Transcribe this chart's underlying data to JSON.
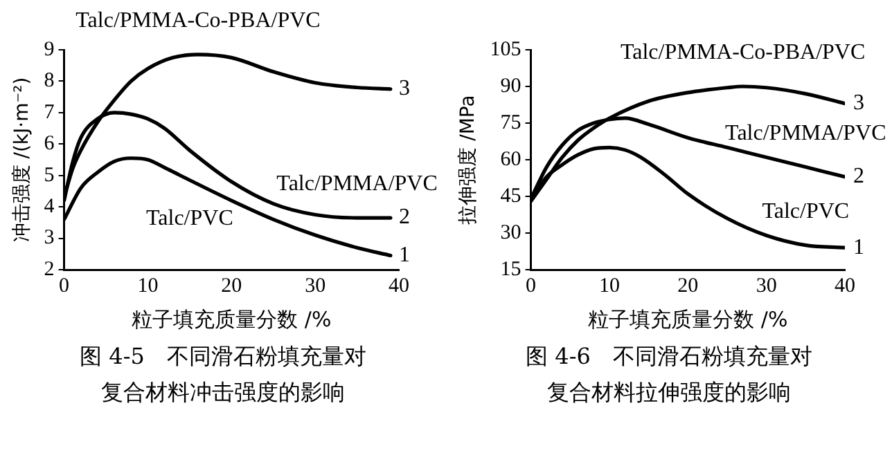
{
  "chart_data": [
    {
      "type": "line",
      "title": "图 4-5　不同滑石粉填充量对",
      "subtitle": "复合材料冲击强度的影响",
      "xlabel": "粒子填充质量分数 /%",
      "ylabel": "冲击强度 /(kJ·m⁻²)",
      "xlim": [
        0,
        40
      ],
      "ylim": [
        2,
        9
      ],
      "xticks": [
        0,
        10,
        20,
        30,
        40
      ],
      "yticks": [
        2,
        3,
        4,
        5,
        6,
        7,
        8,
        9
      ],
      "grid": false,
      "legend": false,
      "marker": "none",
      "line_style": "solid",
      "series": [
        {
          "color": "#000000",
          "x": [
            0,
            2,
            4,
            6,
            8,
            10,
            12,
            15,
            20,
            25,
            30,
            35,
            39
          ],
          "values": [
            3.6,
            4.6,
            5.1,
            5.45,
            5.55,
            5.5,
            5.25,
            4.85,
            4.2,
            3.6,
            3.1,
            2.7,
            2.45
          ]
        },
        {
          "color": "#000000",
          "x": [
            0,
            1,
            2,
            4,
            6,
            8,
            10,
            12,
            15,
            20,
            25,
            30,
            35,
            39
          ],
          "values": [
            4.2,
            5.4,
            6.2,
            6.8,
            7.0,
            6.95,
            6.8,
            6.5,
            5.8,
            4.8,
            4.1,
            3.75,
            3.65,
            3.65
          ]
        },
        {
          "color": "#000000",
          "x": [
            0,
            1,
            2,
            4,
            6,
            8,
            10,
            13,
            16,
            20,
            25,
            30,
            35,
            39
          ],
          "values": [
            4.3,
            5.2,
            5.8,
            6.7,
            7.4,
            8.0,
            8.4,
            8.75,
            8.85,
            8.75,
            8.3,
            7.95,
            7.8,
            7.75
          ]
        }
      ],
      "annotations": [
        {
          "text": "Talc/PMMA-Co-PBA/PVC",
          "x": 16,
          "y": 8.85
        },
        {
          "text": "Talc/PMMA/PVC",
          "x": 35,
          "y": 3.65
        },
        {
          "text": "Talc/PVC",
          "x": 15,
          "y": 4.85
        },
        {
          "text": "3",
          "x": 39,
          "y": 7.75
        },
        {
          "text": "2",
          "x": 39,
          "y": 3.65
        },
        {
          "text": "1",
          "x": 39,
          "y": 2.45
        }
      ]
    },
    {
      "type": "line",
      "title": "图 4-6　不同滑石粉填充量对",
      "subtitle": "复合材料拉伸强度的影响",
      "xlabel": "粒子填充质量分数 /%",
      "ylabel": "拉伸强度 /MPa",
      "xlim": [
        0,
        40
      ],
      "ylim": [
        15,
        105
      ],
      "xticks": [
        0,
        10,
        20,
        30,
        40
      ],
      "yticks": [
        15,
        30,
        45,
        60,
        75,
        90,
        105
      ],
      "grid": false,
      "legend": false,
      "marker": "none",
      "line_style": "solid",
      "series": [
        {
          "color": "#000000",
          "x": [
            0,
            2,
            4,
            6,
            8,
            10,
            12,
            14,
            17,
            20,
            25,
            30,
            35,
            40
          ],
          "values": [
            44,
            53,
            58,
            62,
            64.5,
            65,
            64,
            61,
            54,
            46,
            36,
            29,
            25,
            24
          ]
        },
        {
          "color": "#000000",
          "x": [
            0,
            2,
            4,
            6,
            8,
            10,
            12,
            15,
            20,
            25,
            30,
            35,
            40
          ],
          "values": [
            44,
            57,
            66,
            72,
            75,
            76.5,
            77,
            74.5,
            69,
            65,
            61,
            57,
            53
          ]
        },
        {
          "color": "#000000",
          "x": [
            0,
            2,
            4,
            6,
            8,
            10,
            15,
            20,
            25,
            27,
            30,
            35,
            40
          ],
          "values": [
            43,
            52,
            61,
            68,
            73,
            77,
            84,
            87.5,
            89.5,
            90,
            89.5,
            87,
            83
          ]
        }
      ],
      "annotations": [
        {
          "text": "Talc/PMMA-Co-PBA/PVC",
          "x": 27,
          "y": 90
        },
        {
          "text": "Talc/PMMA/PVC",
          "x": 35,
          "y": 57
        },
        {
          "text": "Talc/PVC",
          "x": 35,
          "y": 25
        },
        {
          "text": "3",
          "x": 40,
          "y": 83
        },
        {
          "text": "2",
          "x": 40,
          "y": 53
        },
        {
          "text": "1",
          "x": 40,
          "y": 24
        }
      ]
    }
  ]
}
